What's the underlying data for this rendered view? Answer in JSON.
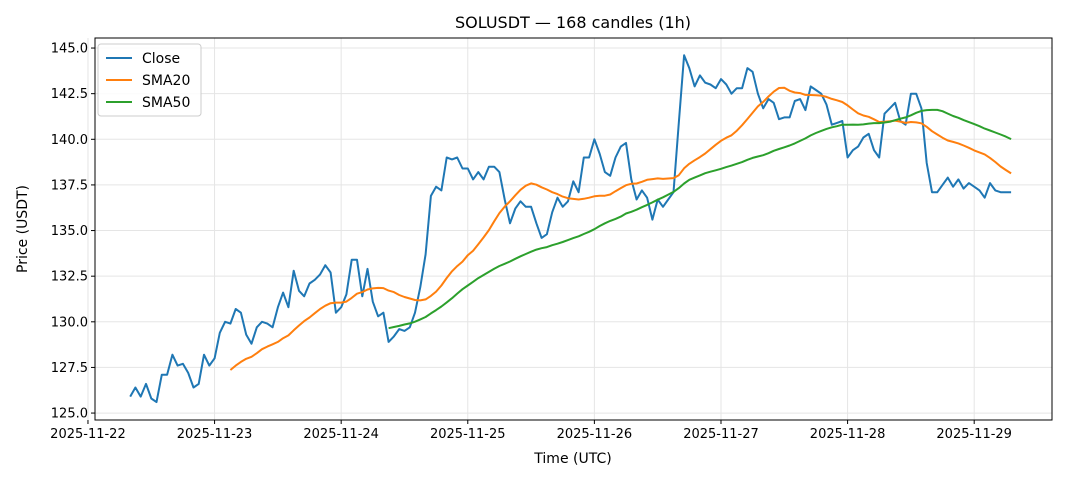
{
  "chart_data": {
    "type": "line",
    "title": "SOLUSDT — 168 candles (1h)",
    "xlabel": "Time (UTC)",
    "ylabel": "Price (USDT)",
    "x_start": "2025-11-22 08:00",
    "interval": "1h",
    "xlim": [
      "2025-11-22 01:20",
      "2025-11-29 14:45"
    ],
    "ylim": [
      124.62,
      145.55
    ],
    "x_ticks": [
      "2025-11-22",
      "2025-11-23",
      "2025-11-24",
      "2025-11-25",
      "2025-11-26",
      "2025-11-27",
      "2025-11-28",
      "2025-11-29"
    ],
    "y_ticks": [
      "125.0",
      "127.5",
      "130.0",
      "132.5",
      "135.0",
      "137.5",
      "140.0",
      "142.5",
      "145.0"
    ],
    "grid": true,
    "legend_position": "top-left",
    "series": [
      {
        "name": "Close",
        "color": "#1f77b4",
        "values": [
          125.9,
          126.4,
          125.9,
          126.6,
          125.8,
          125.6,
          127.1,
          127.1,
          128.2,
          127.6,
          127.7,
          127.2,
          126.4,
          126.6,
          128.2,
          127.6,
          128.0,
          129.4,
          130.0,
          129.9,
          130.7,
          130.5,
          129.3,
          128.8,
          129.7,
          130.0,
          129.9,
          129.7,
          130.8,
          131.6,
          130.8,
          132.8,
          131.7,
          131.4,
          132.1,
          132.3,
          132.6,
          133.1,
          132.7,
          130.5,
          130.8,
          131.5,
          133.4,
          133.4,
          131.4,
          132.9,
          131.1,
          130.3,
          130.5,
          128.9,
          129.2,
          129.6,
          129.5,
          129.7,
          130.5,
          131.9,
          133.7,
          136.9,
          137.4,
          137.2,
          139.0,
          138.9,
          139.0,
          138.4,
          138.4,
          137.8,
          138.2,
          137.8,
          138.5,
          138.5,
          138.2,
          136.7,
          135.4,
          136.2,
          136.6,
          136.3,
          136.3,
          135.4,
          134.6,
          134.8,
          136.0,
          136.8,
          136.3,
          136.6,
          137.7,
          137.1,
          139.0,
          139.0,
          140.0,
          139.2,
          138.2,
          138.0,
          139.0,
          139.6,
          139.8,
          137.8,
          136.7,
          137.2,
          136.8,
          135.6,
          136.7,
          136.3,
          136.7,
          137.1,
          140.9,
          144.6,
          143.9,
          142.9,
          143.5,
          143.1,
          143.0,
          142.8,
          143.3,
          143.0,
          142.5,
          142.8,
          142.8,
          143.9,
          143.7,
          142.5,
          141.7,
          142.2,
          142.0,
          141.1,
          141.2,
          141.2,
          142.1,
          142.2,
          141.6,
          142.9,
          142.7,
          142.5,
          141.9,
          140.8,
          140.9,
          141.0,
          139.0,
          139.4,
          139.6,
          140.1,
          140.3,
          139.4,
          139.0,
          141.4,
          141.7,
          142.0,
          141.0,
          140.8,
          142.5,
          142.5,
          141.7,
          138.7,
          137.1,
          137.1,
          137.5,
          137.9,
          137.4,
          137.8,
          137.3,
          137.6,
          137.4,
          137.2,
          136.8,
          137.6,
          137.2,
          137.1,
          137.1,
          137.1
        ]
      },
      {
        "name": "SMA20",
        "color": "#ff7f0e",
        "window": 20
      },
      {
        "name": "SMA50",
        "color": "#2ca02c",
        "window": 50
      }
    ]
  }
}
